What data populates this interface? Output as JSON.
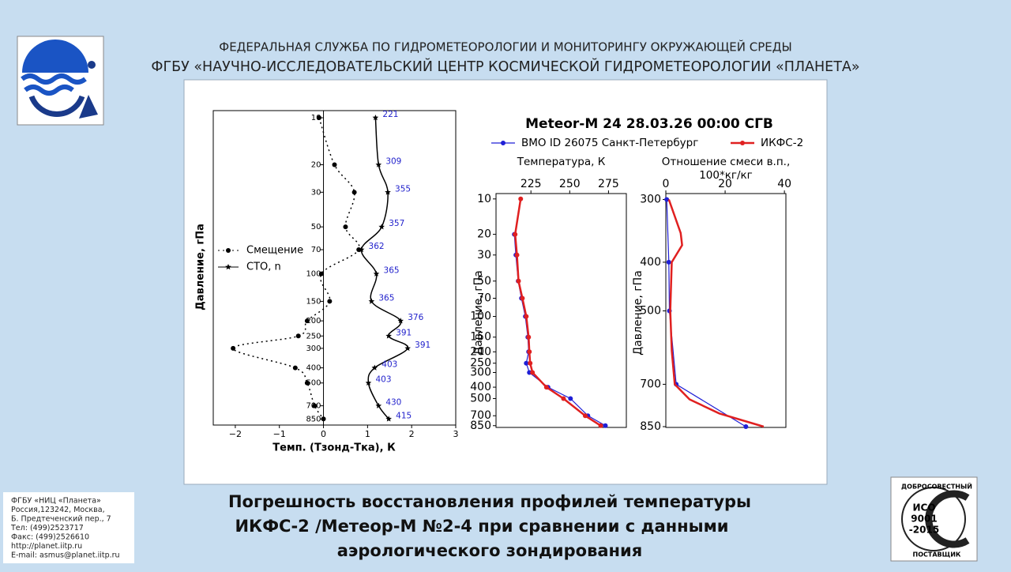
{
  "header": {
    "agency": "ФЕДЕРАЛЬНАЯ СЛУЖБА ПО ГИДРОМЕТЕОРОЛОГИИ И МОНИТОРИНГУ ОКРУЖАЮЩЕЙ СРЕДЫ",
    "institute": "ФГБУ «НАУЧНО-ИССЛЕДОВАТЕЛЬСКИЙ ЦЕНТР КОСМИЧЕСКОЙ ГИДРОМЕТЕОРОЛОГИИ «ПЛАНЕТА»"
  },
  "caption": [
    "Погрешность восстановления профилей температуры",
    "ИКФС-2 /Метеор-М №2-4 при сравнении с данными",
    "аэрологического зондирования"
  ],
  "contacts": [
    "ФГБУ «НИЦ «Планета»",
    "Россия,123242, Москва,",
    "Б. Предтеченский пер., 7",
    "Тел:   (499)2523717",
    "Факс: (499)2526610",
    "http://planet.iitp.ru",
    "E-mail: asmus@planet.iitp.ru"
  ],
  "iso": {
    "top": "ДОБРОСОВЕСТНЫЙ",
    "name": "ИСО",
    "number": "9001",
    "year": "-2015",
    "bottom": "ПОСТАВЩИК"
  },
  "chart_data": [
    {
      "type": "line",
      "ylabel": "Давление, гПа",
      "xlabel": "Темп. (Тзонд-Тка), К",
      "log_y": true,
      "legend": "left",
      "y": [
        10,
        20,
        30,
        50,
        70,
        100,
        150,
        200,
        250,
        300,
        400,
        500,
        700,
        850
      ],
      "xlim": [
        -2.5,
        3
      ],
      "ylim": [
        9,
        930
      ],
      "xticks": [
        {
          "value": -2,
          "label": "−2"
        },
        {
          "value": -1,
          "label": "−1"
        },
        0,
        1,
        2,
        3
      ],
      "yticks": [
        10,
        20,
        30,
        50,
        70,
        100,
        150,
        200,
        250,
        300,
        400,
        500,
        700,
        850
      ],
      "series": [
        {
          "name": "Смещение",
          "color": "#000000",
          "style": "dotted",
          "marker": "circle",
          "values": [
            -0.1,
            0.25,
            0.7,
            0.5,
            0.8,
            -0.05,
            0.14,
            -0.37,
            -0.57,
            -2.05,
            -0.64,
            -0.37,
            -0.2,
            0
          ]
        },
        {
          "name": "СТО, n",
          "color": "#000000",
          "style": "solid",
          "marker": "star",
          "values": [
            1.18,
            1.25,
            1.46,
            1.32,
            0.86,
            1.2,
            1.09,
            1.75,
            1.48,
            1.91,
            1.16,
            1.02,
            1.25,
            1.48
          ],
          "counts": [
            221,
            309,
            355,
            357,
            362,
            365,
            365,
            376,
            391,
            391,
            403,
            403,
            430,
            415
          ],
          "counts_color": "#2222cc"
        }
      ]
    },
    {
      "type": "line",
      "title": "Meteor-M 24 28.03.26 00:00 СГВ",
      "subtitle": [
        "Температура, К"
      ],
      "ylabel": "Давление, гПа",
      "log_y": true,
      "y": [
        10,
        20,
        30,
        50,
        70,
        100,
        150,
        200,
        250,
        300,
        400,
        500,
        700,
        850
      ],
      "xlim": [
        202.5,
        286.5
      ],
      "ylim": [
        9,
        880
      ],
      "xticks": [
        225,
        250,
        275
      ],
      "yticks": [
        10,
        20,
        30,
        50,
        70,
        100,
        150,
        200,
        250,
        300,
        400,
        500,
        700,
        850
      ],
      "series": [
        {
          "name": "ВМО ID 26075 Санкт-Петербург",
          "color": "#1f1fd6",
          "width": 1.2,
          "marker": "circle",
          "values": [
            null,
            214.3,
            215.3,
            216.8,
            218.9,
            221.4,
            223,
            223.5,
            222,
            224,
            236,
            250.5,
            261.7,
            273
          ]
        },
        {
          "name": "ИКФС-2",
          "color": "#e02020",
          "width": 2.5,
          "marker": "circle",
          "values": [
            218.4,
            214.8,
            216,
            217,
            219.5,
            222,
            223.5,
            224,
            224.5,
            226,
            235,
            246,
            260,
            270
          ]
        }
      ]
    },
    {
      "type": "line",
      "subtitle": [
        "Отношение смеси в.п.,",
        "100*кг/кг"
      ],
      "ylabel": "Давление, гПа",
      "log_y": true,
      "xlim": [
        0,
        40.5
      ],
      "ylim": [
        292,
        853
      ],
      "xticks": [
        0,
        20,
        40
      ],
      "yticks": [
        300,
        400,
        500,
        700,
        850
      ],
      "series": [
        {
          "color": "#1f1fd6",
          "width": 1.2,
          "marker": "circle",
          "y": [
            300,
            400,
            500,
            700,
            850
          ],
          "values": [
            0.3,
            1,
            1.2,
            3.5,
            27
          ]
        },
        {
          "color": "#e02020",
          "width": 2.5,
          "y": [
            300,
            350,
            370,
            400,
            500,
            600,
            700,
            750,
            800,
            850
          ],
          "values": [
            1,
            5,
            5.5,
            2,
            1.5,
            2,
            3,
            8,
            18,
            33
          ]
        }
      ]
    }
  ]
}
